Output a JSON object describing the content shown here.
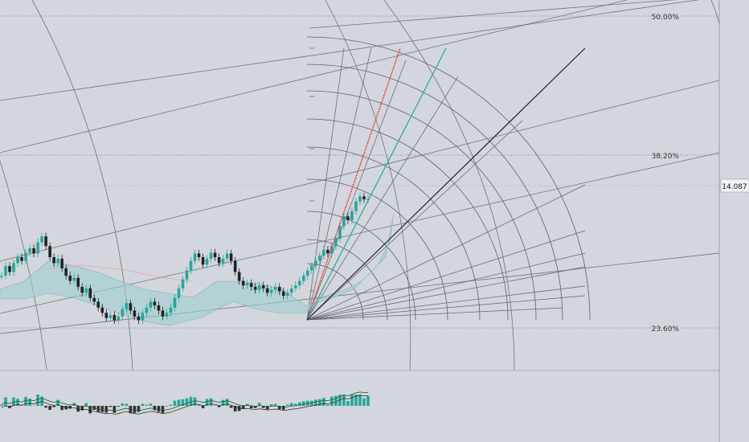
{
  "chart_data": {
    "type": "candlestick",
    "title": "",
    "price_axis": {
      "current_price_label": "14.087"
    },
    "fib_levels": [
      {
        "label": "50.00%"
      },
      {
        "label": "38.20%"
      },
      {
        "label": "23.60%"
      }
    ],
    "series": [
      {
        "name": "",
        "values": [
          13.05,
          13.18,
          13.1,
          13.22,
          13.3,
          13.25,
          13.36,
          13.42,
          13.35,
          13.5,
          13.58,
          13.45,
          13.3,
          13.22,
          13.28,
          13.15,
          13.05,
          12.98,
          13.02,
          12.9,
          12.82,
          12.88,
          12.75,
          12.7,
          12.62,
          12.55,
          12.48,
          12.52,
          12.45,
          12.5,
          12.6,
          12.68,
          12.58,
          12.5,
          12.45,
          12.55,
          12.62,
          12.7,
          12.65,
          12.58,
          12.5,
          12.55,
          12.62,
          12.75,
          12.88,
          13.0,
          13.12,
          13.25,
          13.35,
          13.3,
          13.2,
          13.28,
          13.36,
          13.3,
          13.22,
          13.28,
          13.35,
          13.25,
          13.1,
          12.98,
          12.92,
          12.95,
          12.9,
          12.86,
          12.92,
          12.88,
          12.82,
          12.86,
          12.9,
          12.84,
          12.78,
          12.82,
          12.88,
          12.92,
          12.98,
          13.05,
          13.12,
          13.18,
          13.25,
          13.32,
          13.4,
          13.35,
          13.45,
          13.55,
          13.72,
          13.85,
          13.8,
          13.92,
          14.05,
          14.12,
          14.08,
          14.087
        ]
      }
    ]
  }
}
